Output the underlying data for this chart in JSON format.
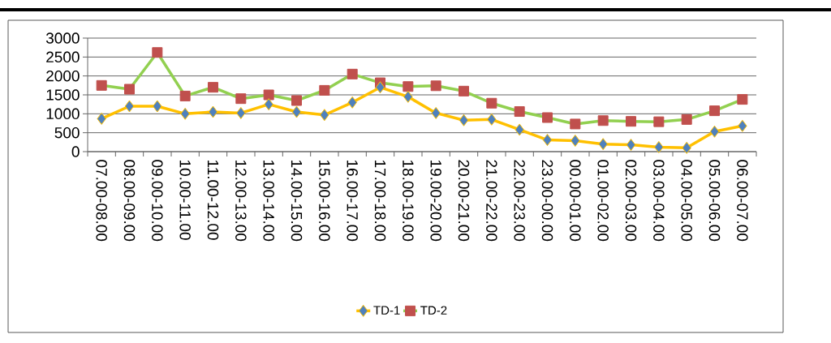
{
  "chart_data": {
    "type": "line",
    "categories": [
      "07.00-08.00",
      "08.00-09.00",
      "09.00-10.00",
      "10.00-11.00",
      "11.00-12.00",
      "12.00-13.00",
      "13.00-14.00",
      "14.00-15.00",
      "15.00-16.00",
      "16.00-17.00",
      "17.00-18.00",
      "18.00-19.00",
      "19.00-20.00",
      "20.00-21.00",
      "21.00-22.00",
      "22.00-23.00",
      "23.00-00.00",
      "00.00-01.00",
      "01.00-02.00",
      "02.00-03.00",
      "03.00-04.00",
      "04.00-05.00",
      "05.00-06.00",
      "06.00-07.00"
    ],
    "series": [
      {
        "name": "TD-1",
        "color": "#ffc000",
        "marker": "diamond",
        "values": [
          870,
          1200,
          1200,
          1000,
          1050,
          1020,
          1250,
          1050,
          970,
          1300,
          1700,
          1450,
          1020,
          830,
          850,
          580,
          310,
          290,
          200,
          180,
          120,
          100,
          530,
          680
        ]
      },
      {
        "name": "TD-2",
        "color": "#92d050",
        "marker": "square",
        "values": [
          1750,
          1650,
          2620,
          1470,
          1700,
          1400,
          1500,
          1350,
          1620,
          2050,
          1820,
          1720,
          1740,
          1600,
          1280,
          1060,
          900,
          730,
          820,
          800,
          790,
          850,
          1080,
          1380
        ]
      }
    ],
    "ylim": [
      0,
      3000
    ],
    "yticks": [
      0,
      500,
      1000,
      1500,
      2000,
      2500,
      3000
    ],
    "grid": "y",
    "legend": "bottom"
  }
}
